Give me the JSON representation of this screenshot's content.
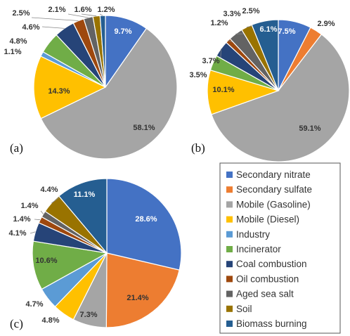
{
  "colors": {
    "Secondary nitrate": "#4472c4",
    "Secondary sulfate": "#ed7d31",
    "Mobile (Gasoline)": "#a5a5a5",
    "Mobile (Diesel)": "#ffc000",
    "Industry": "#5b9bd5",
    "Incinerator": "#70ad47",
    "Coal combustion": "#264478",
    "Oil combustion": "#9e480e",
    "Aged sea salt": "#636363",
    "Soil": "#997300",
    "Biomass burning": "#255e91"
  },
  "legend": {
    "items": [
      "Secondary nitrate",
      "Secondary sulfate",
      "Mobile (Gasoline)",
      "Mobile (Diesel)",
      "Industry",
      "Incinerator",
      "Coal combustion",
      "Oil combustion",
      "Aged sea salt",
      "Soil",
      "Biomass burning"
    ]
  },
  "chart_data": [
    {
      "type": "pie",
      "panel": "(a)",
      "categories": [
        "Secondary nitrate",
        "Mobile (Gasoline)",
        "Mobile (Diesel)",
        "Industry",
        "Incinerator",
        "Coal combustion",
        "Oil combustion",
        "Aged sea salt",
        "Soil",
        "Biomass burning"
      ],
      "values": [
        9.7,
        58.1,
        14.3,
        1.1,
        4.8,
        4.6,
        2.5,
        2.1,
        1.6,
        1.2
      ],
      "labels": [
        "9.7%",
        "58.1%",
        "14.3%",
        "1.1%",
        "4.8%",
        "4.6%",
        "2.5%",
        "2.1%",
        "1.6%",
        "1.2%"
      ]
    },
    {
      "type": "pie",
      "panel": "(b)",
      "categories": [
        "Secondary nitrate",
        "Secondary sulfate",
        "Mobile (Gasoline)",
        "Mobile (Diesel)",
        "Incinerator",
        "Coal combustion",
        "Oil combustion",
        "Aged sea salt",
        "Soil",
        "Biomass burning"
      ],
      "values": [
        7.5,
        2.9,
        59.1,
        10.1,
        3.5,
        3.7,
        1.2,
        3.3,
        2.5,
        6.1
      ],
      "labels": [
        "7.5%",
        "2.9%",
        "59.1%",
        "10.1%",
        "3.5%",
        "3.7%",
        "1.2%",
        "3.3%",
        "2.5%",
        "6.1%"
      ]
    },
    {
      "type": "pie",
      "panel": "(c)",
      "categories": [
        "Secondary nitrate",
        "Secondary sulfate",
        "Mobile (Gasoline)",
        "Mobile (Diesel)",
        "Industry",
        "Incinerator",
        "Coal combustion",
        "Oil combustion",
        "Aged sea salt",
        "Soil",
        "Biomass burning"
      ],
      "values": [
        28.6,
        21.4,
        7.3,
        4.8,
        4.7,
        10.6,
        4.1,
        1.4,
        1.4,
        4.4,
        11.1
      ],
      "labels": [
        "28.6%",
        "21.4%",
        "7.3%",
        "4.8%",
        "4.7%",
        "10.6%",
        "4.1%",
        "1.4%",
        "1.4%",
        "4.4%",
        "11.1%"
      ]
    }
  ]
}
